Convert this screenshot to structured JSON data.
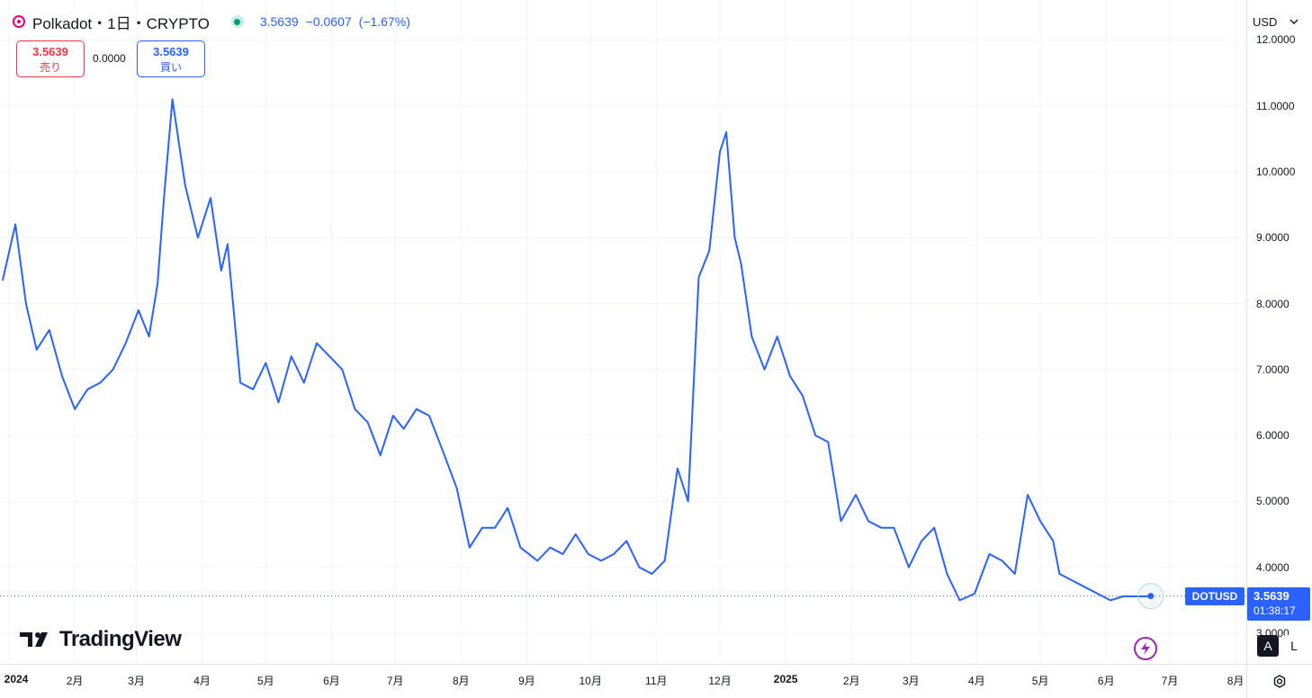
{
  "header": {
    "symbol_title": "Polkadot・1日・CRYPTO",
    "last": "3.5639",
    "change": "−0.0607",
    "change_pct": "(−1.67%)",
    "accent_color": "#2962ff",
    "logo_icon": "polkadot-logo-icon"
  },
  "trade": {
    "sell_price": "3.5639",
    "sell_label": "売り",
    "spread": "0.0000",
    "buy_price": "3.5639",
    "buy_label": "買い"
  },
  "currency": {
    "value": "USD"
  },
  "price_tag": {
    "symbol": "DOTUSD",
    "price": "3.5639",
    "countdown": "01:38:17"
  },
  "branding": {
    "logo_text": "TradingView"
  },
  "scale_buttons": {
    "auto": "A",
    "log": "L"
  },
  "chart_data": {
    "type": "line",
    "series": [
      {
        "color": "#2962ff",
        "x": [
          "2023-12-29",
          "2024-01-04",
          "2024-01-09",
          "2024-01-14",
          "2024-01-20",
          "2024-01-26",
          "2024-02-01",
          "2024-02-07",
          "2024-02-13",
          "2024-02-19",
          "2024-02-25",
          "2024-03-02",
          "2024-03-07",
          "2024-03-11",
          "2024-03-14",
          "2024-03-18",
          "2024-03-24",
          "2024-03-30",
          "2024-04-05",
          "2024-04-10",
          "2024-04-13",
          "2024-04-19",
          "2024-04-25",
          "2024-05-01",
          "2024-05-07",
          "2024-05-13",
          "2024-05-19",
          "2024-05-25",
          "2024-05-31",
          "2024-06-06",
          "2024-06-12",
          "2024-06-18",
          "2024-06-24",
          "2024-06-30",
          "2024-07-05",
          "2024-07-11",
          "2024-07-17",
          "2024-07-23",
          "2024-07-30",
          "2024-08-05",
          "2024-08-11",
          "2024-08-17",
          "2024-08-23",
          "2024-08-29",
          "2024-09-06",
          "2024-09-12",
          "2024-09-18",
          "2024-09-24",
          "2024-09-30",
          "2024-10-06",
          "2024-10-12",
          "2024-10-18",
          "2024-10-24",
          "2024-10-30",
          "2024-11-05",
          "2024-11-11",
          "2024-11-16",
          "2024-11-21",
          "2024-11-26",
          "2024-12-01",
          "2024-12-04",
          "2024-12-08",
          "2024-12-11",
          "2024-12-16",
          "2024-12-22",
          "2024-12-28",
          "2025-01-03",
          "2025-01-09",
          "2025-01-15",
          "2025-01-21",
          "2025-01-27",
          "2025-02-03",
          "2025-02-09",
          "2025-02-15",
          "2025-02-21",
          "2025-02-28",
          "2025-03-06",
          "2025-03-12",
          "2025-03-18",
          "2025-03-24",
          "2025-03-31",
          "2025-04-07",
          "2025-04-13",
          "2025-04-19",
          "2025-04-25",
          "2025-05-01",
          "2025-05-07",
          "2025-05-10",
          "2025-05-16",
          "2025-05-22",
          "2025-05-28",
          "2025-06-03",
          "2025-06-09",
          "2025-06-13",
          "2025-06-19",
          "2025-06-22"
        ],
        "y": [
          8.35,
          9.2,
          8.0,
          7.3,
          7.6,
          6.9,
          6.4,
          6.7,
          6.8,
          7.0,
          7.4,
          7.9,
          7.5,
          8.3,
          9.6,
          11.1,
          9.8,
          9.0,
          9.6,
          8.5,
          8.9,
          6.8,
          6.7,
          7.1,
          6.5,
          7.2,
          6.8,
          7.4,
          7.2,
          7.0,
          6.4,
          6.2,
          5.7,
          6.3,
          6.1,
          6.4,
          6.3,
          5.8,
          5.2,
          4.3,
          4.6,
          4.6,
          4.9,
          4.3,
          4.1,
          4.3,
          4.2,
          4.5,
          4.2,
          4.1,
          4.2,
          4.4,
          4.0,
          3.9,
          4.1,
          5.5,
          5.0,
          8.4,
          8.8,
          10.3,
          10.6,
          9.0,
          8.6,
          7.5,
          7.0,
          7.5,
          6.9,
          6.6,
          6.0,
          5.9,
          4.7,
          5.1,
          4.7,
          4.6,
          4.6,
          4.0,
          4.4,
          4.6,
          3.9,
          3.5,
          3.6,
          4.2,
          4.1,
          3.9,
          5.1,
          4.7,
          4.4,
          3.9,
          3.8,
          3.7,
          3.6,
          3.5,
          3.56,
          3.56,
          3.56,
          3.5639
        ]
      }
    ],
    "ylim": [
      2.6,
      12.2
    ],
    "ticks_y": [
      "3.0000",
      "4.0000",
      "5.0000",
      "6.0000",
      "7.0000",
      "8.0000",
      "9.0000",
      "10.0000",
      "11.0000",
      "12.0000"
    ],
    "ticks_x": [
      {
        "label": "2024",
        "date": "2024-01-01",
        "year": true
      },
      {
        "label": "2月",
        "date": "2024-02-01"
      },
      {
        "label": "3月",
        "date": "2024-03-01"
      },
      {
        "label": "4月",
        "date": "2024-04-01"
      },
      {
        "label": "5月",
        "date": "2024-05-01"
      },
      {
        "label": "6月",
        "date": "2024-06-01"
      },
      {
        "label": "7月",
        "date": "2024-07-01"
      },
      {
        "label": "8月",
        "date": "2024-08-01"
      },
      {
        "label": "9月",
        "date": "2024-09-01"
      },
      {
        "label": "10月",
        "date": "2024-10-01"
      },
      {
        "label": "11月",
        "date": "2024-11-01"
      },
      {
        "label": "12月",
        "date": "2024-12-01"
      },
      {
        "label": "2025",
        "date": "2025-01-01",
        "year": true
      },
      {
        "label": "2月",
        "date": "2025-02-01"
      },
      {
        "label": "3月",
        "date": "2025-03-01"
      },
      {
        "label": "4月",
        "date": "2025-04-01"
      },
      {
        "label": "5月",
        "date": "2025-05-01"
      },
      {
        "label": "6月",
        "date": "2025-06-01"
      },
      {
        "label": "7月",
        "date": "2025-07-01"
      },
      {
        "label": "8月",
        "date": "2025-08-01"
      }
    ],
    "last_value": 3.5639,
    "grid": true
  }
}
